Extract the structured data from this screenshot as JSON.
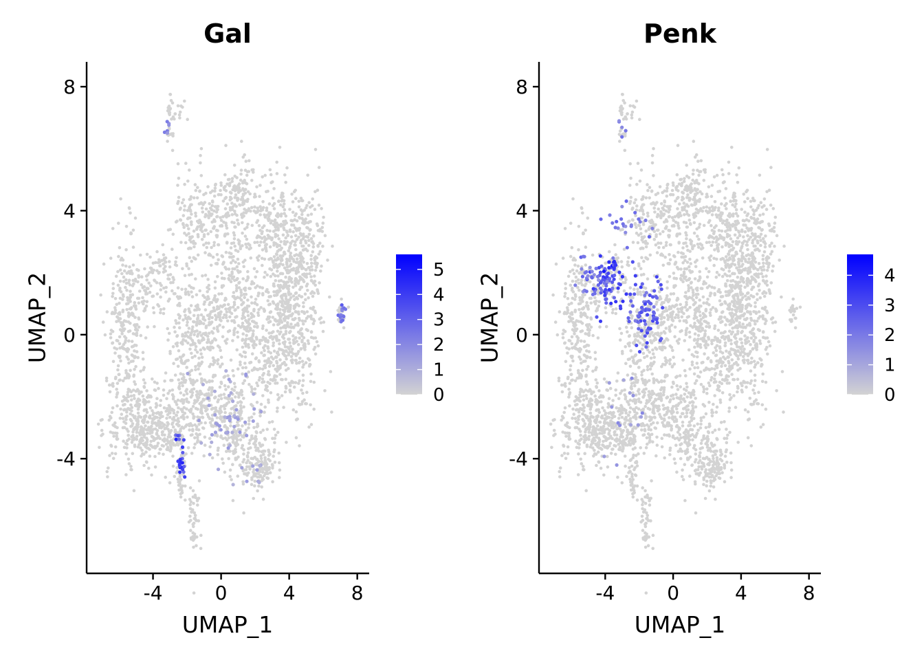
{
  "chart_data": [
    {
      "type": "scatter",
      "title": "Gal",
      "xlabel": "UMAP_1",
      "ylabel": "UMAP_2",
      "xlim": [
        -7.9,
        8.7
      ],
      "ylim": [
        -7.7,
        8.8
      ],
      "xticks": [
        -4,
        0,
        4,
        8
      ],
      "yticks": [
        -4,
        0,
        4,
        8
      ],
      "xtick_labels": [
        "-4",
        "0",
        "4",
        "8"
      ],
      "ytick_labels": [
        "-4",
        "0",
        "4",
        "8"
      ],
      "grid": false,
      "legend": {
        "position": "right",
        "type": "colorbar",
        "min": 0,
        "max": 5.6,
        "ticks": [
          0,
          1,
          2,
          3,
          4,
          5
        ],
        "tick_labels": [
          "0",
          "1",
          "2",
          "3",
          "4",
          "5"
        ],
        "low_color": "#d3d3d3",
        "high_color": "#0000ff"
      },
      "hotspots": [
        {
          "x": -2.3,
          "y": -4.0,
          "sx": 0.1,
          "sy": 0.3,
          "n": 18,
          "value": 5.0
        },
        {
          "x": -2.6,
          "y": -3.3,
          "sx": 0.1,
          "sy": 0.12,
          "n": 5,
          "value": 4.6
        },
        {
          "x": 7.1,
          "y": 0.7,
          "sx": 0.12,
          "sy": 0.2,
          "n": 14,
          "value": 3.2
        },
        {
          "x": -3.2,
          "y": 6.6,
          "sx": 0.08,
          "sy": 0.15,
          "n": 6,
          "value": 2.8
        },
        {
          "x": 0.5,
          "y": -2.6,
          "sx": 1.0,
          "sy": 0.7,
          "n": 48,
          "value": 1.6
        },
        {
          "x": 1.7,
          "y": -4.4,
          "sx": 0.5,
          "sy": 0.3,
          "n": 10,
          "value": 1.5
        }
      ]
    },
    {
      "type": "scatter",
      "title": "Penk",
      "xlabel": "UMAP_1",
      "ylabel": "UMAP_2",
      "xlim": [
        -7.9,
        8.7
      ],
      "ylim": [
        -7.7,
        8.8
      ],
      "xticks": [
        -4,
        0,
        4,
        8
      ],
      "yticks": [
        -4,
        0,
        4,
        8
      ],
      "xtick_labels": [
        "-4",
        "0",
        "4",
        "8"
      ],
      "ytick_labels": [
        "-4",
        "0",
        "4",
        "8"
      ],
      "grid": false,
      "legend": {
        "position": "right",
        "type": "colorbar",
        "min": 0,
        "max": 4.7,
        "ticks": [
          0,
          1,
          2,
          3,
          4
        ],
        "tick_labels": [
          "0",
          "1",
          "2",
          "3",
          "4"
        ],
        "low_color": "#d3d3d3",
        "high_color": "#0000ff"
      },
      "hotspots": [
        {
          "x": -3.8,
          "y": 1.6,
          "sx": 0.6,
          "sy": 0.4,
          "n": 70,
          "value": 3.6
        },
        {
          "x": -3.5,
          "y": 2.2,
          "sx": 0.3,
          "sy": 0.12,
          "n": 16,
          "value": 4.3
        },
        {
          "x": -5.0,
          "y": 1.8,
          "sx": 0.5,
          "sy": 0.3,
          "n": 20,
          "value": 2.6
        },
        {
          "x": -1.6,
          "y": 0.7,
          "sx": 0.45,
          "sy": 0.6,
          "n": 75,
          "value": 3.3
        },
        {
          "x": -2.8,
          "y": 3.7,
          "sx": 0.7,
          "sy": 0.5,
          "n": 22,
          "value": 2.6
        },
        {
          "x": -3.0,
          "y": 6.7,
          "sx": 0.15,
          "sy": 0.4,
          "n": 5,
          "value": 2.6
        },
        {
          "x": -2.0,
          "y": -2.5,
          "sx": 1.2,
          "sy": 1.0,
          "n": 14,
          "value": 1.8
        }
      ]
    }
  ]
}
